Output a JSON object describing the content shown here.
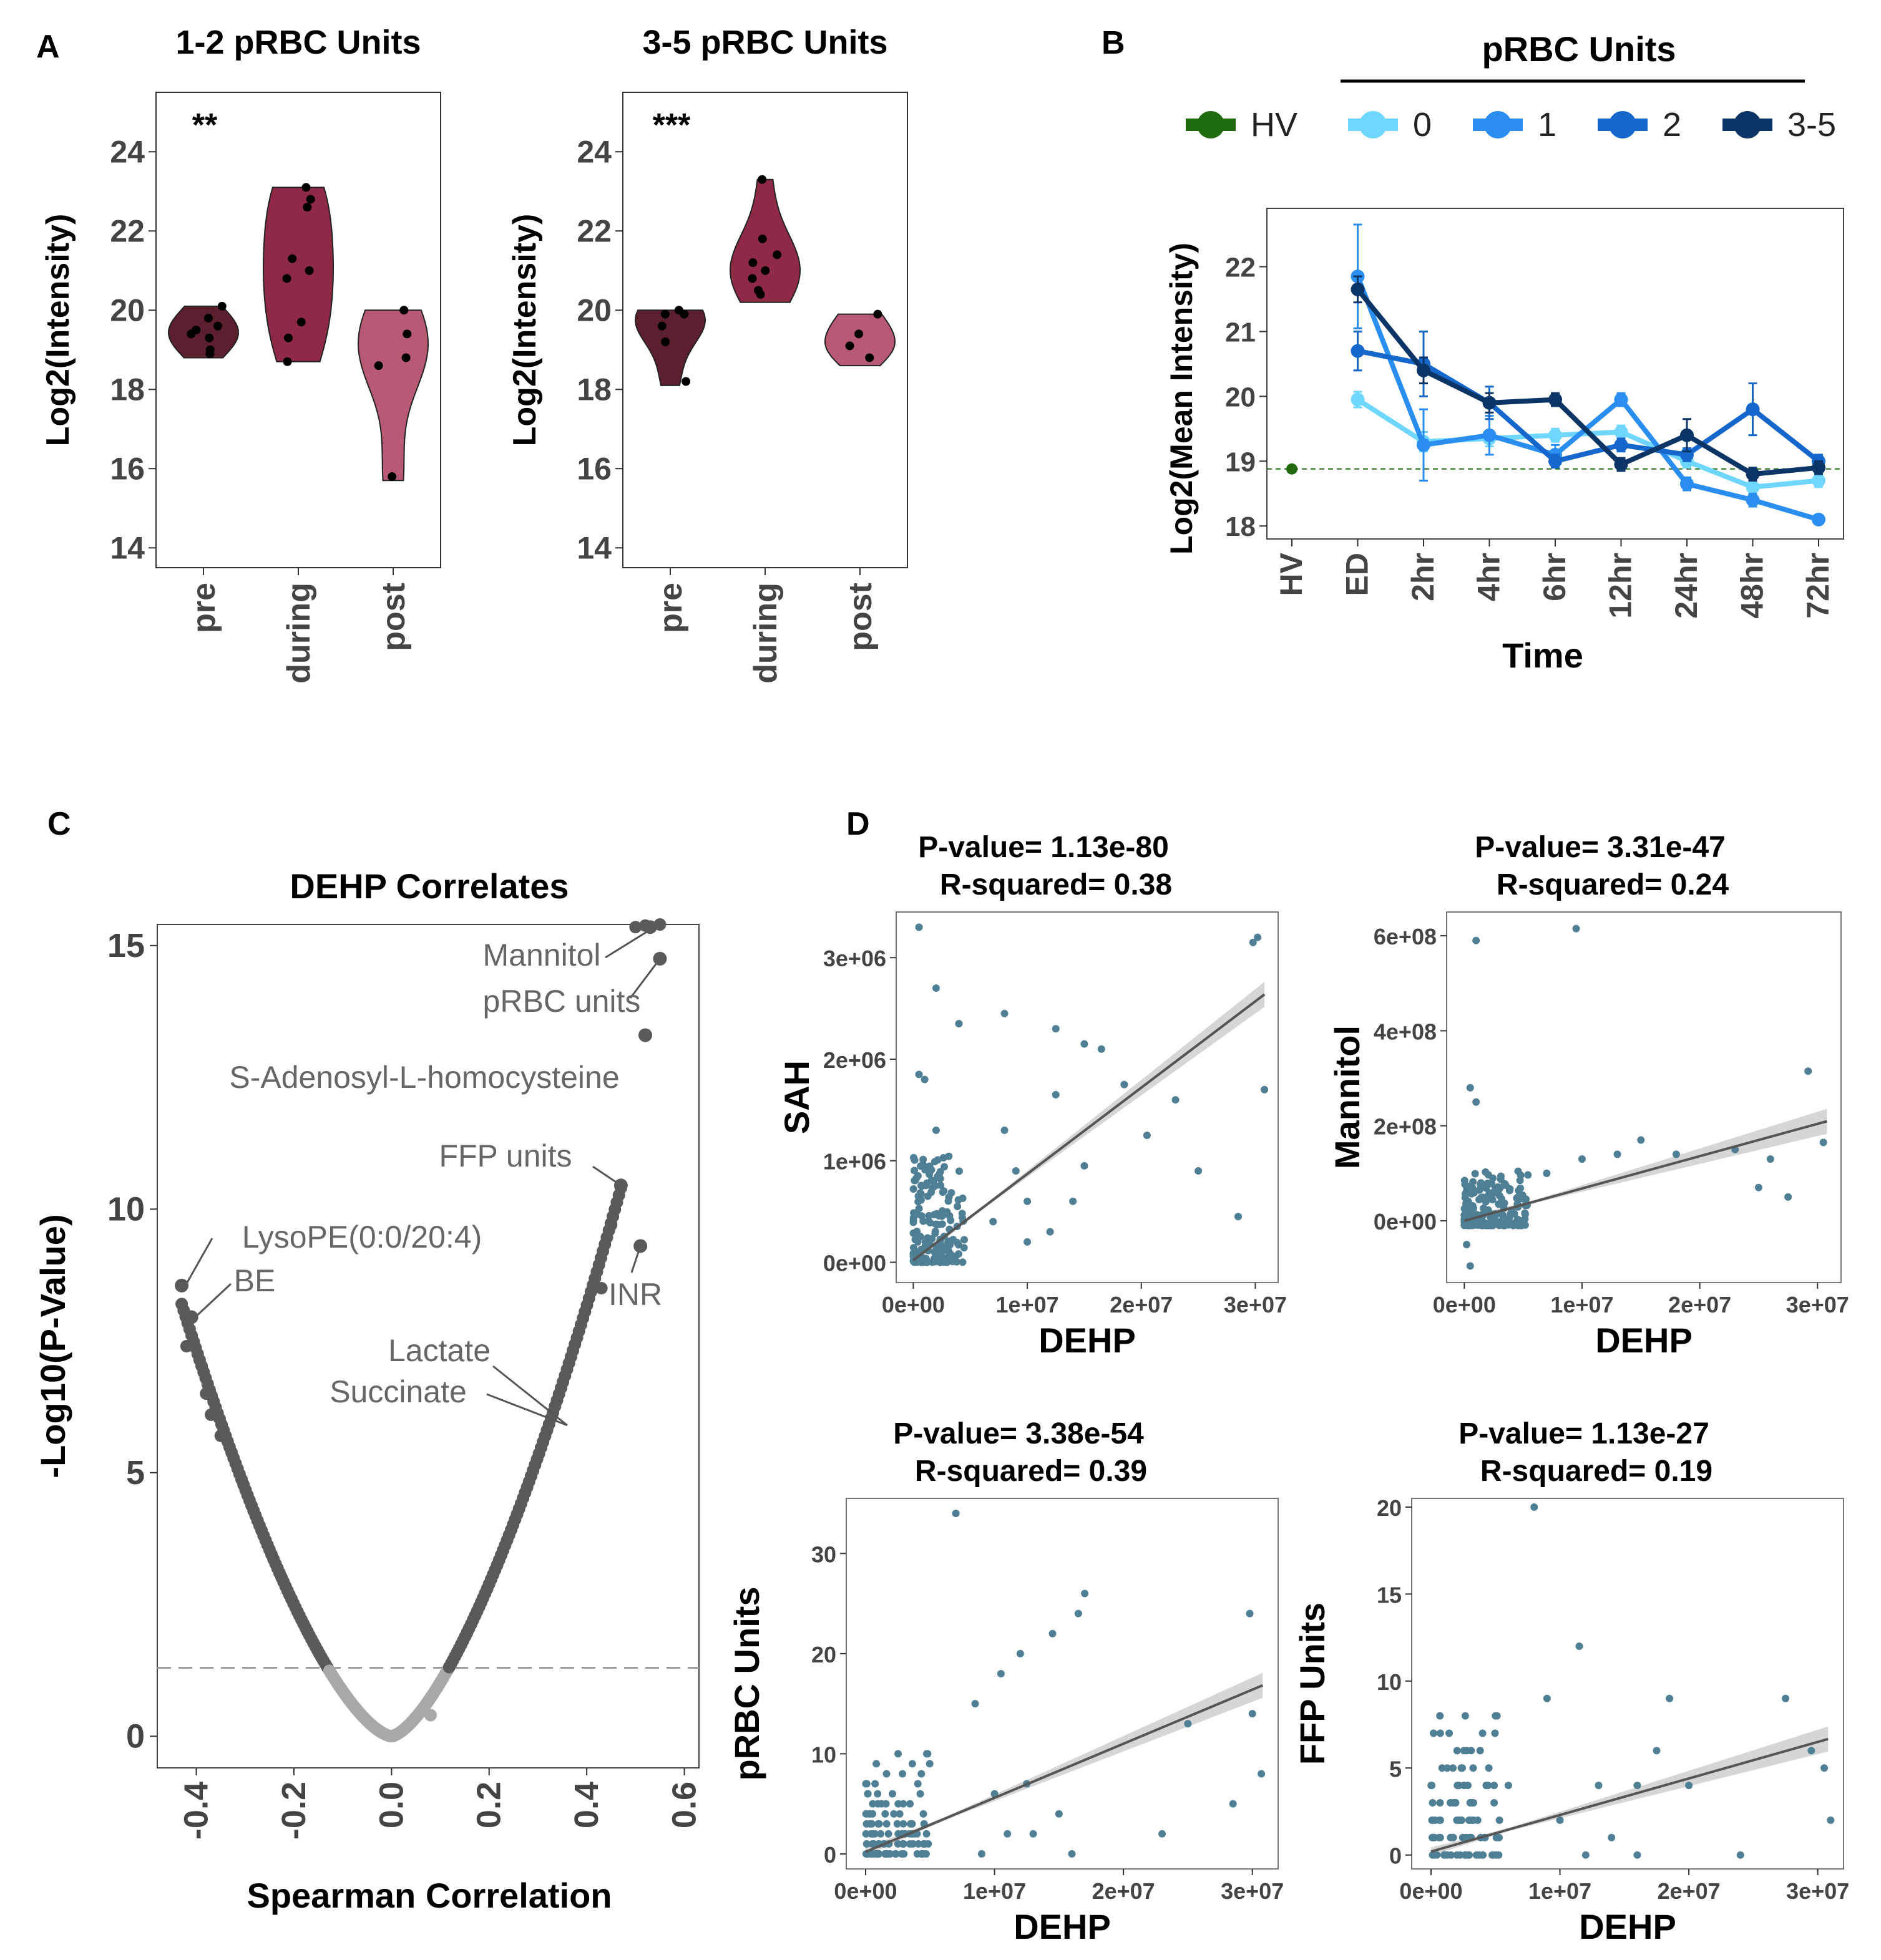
{
  "panel_labels": {
    "a": "A",
    "b": "B",
    "c": "C",
    "d": "D"
  },
  "colors": {
    "violin_pre": "#5c1f2d",
    "violin_during": "#8e2a45",
    "violin_post": "#b85a74",
    "hv": "#1f6b0e",
    "u0": "#6fd6ff",
    "u1": "#2a8df0",
    "u2": "#1667cc",
    "u35": "#0b3566",
    "scatter": "#4f7f94",
    "fit": "#555555",
    "band": "#cfcfcf",
    "volcano_sig": "#5a5a5a",
    "volcano_ns": "#a8a8a8"
  },
  "chart_data": [
    {
      "type": "violin",
      "id": "a1",
      "title": "1-2 pRBC Units",
      "ylabel": "Log2(Intensity)",
      "annotation": "**",
      "ylim": [
        13.5,
        25.5
      ],
      "yticks": [
        "14",
        "16",
        "18",
        "20",
        "22",
        "24"
      ],
      "ytick_values": [
        14,
        16,
        18,
        20,
        22,
        24
      ],
      "categories": [
        "pre",
        "during",
        "post"
      ],
      "groups": [
        {
          "name": "pre",
          "min": 18.8,
          "max": 20.1,
          "points": [
            19.3,
            19.5,
            19.8,
            20.1,
            19.0,
            18.9,
            19.4,
            19.6
          ]
        },
        {
          "name": "during",
          "min": 18.7,
          "max": 23.1,
          "points": [
            23.1,
            22.8,
            22.6,
            21.3,
            21.0,
            20.8,
            19.7,
            19.3,
            18.7
          ]
        },
        {
          "name": "post",
          "min": 15.7,
          "max": 20.0,
          "points": [
            20.0,
            19.4,
            18.8,
            18.6,
            15.8
          ]
        }
      ]
    },
    {
      "type": "violin",
      "id": "a2",
      "title": "3-5 pRBC Units",
      "ylabel": "Log2(Intensity)",
      "annotation": "***",
      "ylim": [
        13.5,
        25.5
      ],
      "yticks": [
        "14",
        "16",
        "18",
        "20",
        "22",
        "24"
      ],
      "ytick_values": [
        14,
        16,
        18,
        20,
        22,
        24
      ],
      "categories": [
        "pre",
        "during",
        "post"
      ],
      "groups": [
        {
          "name": "pre",
          "min": 18.1,
          "max": 20.0,
          "points": [
            20.0,
            19.9,
            19.6,
            19.2,
            18.2,
            19.9
          ]
        },
        {
          "name": "during",
          "min": 20.2,
          "max": 23.3,
          "points": [
            23.3,
            21.8,
            21.4,
            21.2,
            20.8,
            20.5,
            20.4,
            21.0
          ]
        },
        {
          "name": "post",
          "min": 18.6,
          "max": 19.9,
          "points": [
            19.9,
            19.4,
            18.8,
            19.1
          ]
        }
      ]
    },
    {
      "type": "line",
      "id": "b",
      "header": "pRBC Units",
      "xlabel": "Time",
      "ylabel": "Log2(Mean Intensity)",
      "ylim": [
        17.8,
        22.9
      ],
      "yticks": [
        "18",
        "19",
        "20",
        "21",
        "22"
      ],
      "ytick_values": [
        18,
        19,
        20,
        21,
        22
      ],
      "categories": [
        "HV",
        "ED",
        "2hr",
        "4hr",
        "6hr",
        "12hr",
        "24hr",
        "48hr",
        "72hr"
      ],
      "hv_value": 18.88,
      "legend": [
        {
          "label": "HV",
          "key": "hv"
        },
        {
          "label": "0",
          "key": "u0"
        },
        {
          "label": "1",
          "key": "u1"
        },
        {
          "label": "2",
          "key": "u2"
        },
        {
          "label": "3-5",
          "key": "u35"
        }
      ],
      "series": [
        {
          "name": "0",
          "key": "u0",
          "values": [
            null,
            19.95,
            19.3,
            19.35,
            19.4,
            19.45,
            19.0,
            18.6,
            18.7
          ],
          "err": [
            0,
            0.12,
            0.15,
            0.12,
            0.1,
            0.1,
            0.1,
            0.1,
            0.1
          ]
        },
        {
          "name": "1",
          "key": "u1",
          "values": [
            null,
            21.85,
            19.25,
            19.4,
            19.1,
            19.95,
            18.65,
            18.4,
            18.1
          ],
          "err": [
            0,
            0.8,
            0.55,
            0.3,
            0.15,
            0.1,
            0.1,
            0.1,
            0.05
          ]
        },
        {
          "name": "2",
          "key": "u2",
          "values": [
            null,
            20.7,
            20.5,
            19.9,
            19.0,
            19.25,
            19.1,
            19.8,
            19.0
          ],
          "err": [
            0,
            0.3,
            0.5,
            0.25,
            0.1,
            0.1,
            0.1,
            0.4,
            0.1
          ]
        },
        {
          "name": "3-5",
          "key": "u35",
          "values": [
            null,
            21.65,
            20.4,
            19.9,
            19.95,
            18.95,
            19.4,
            18.8,
            18.9
          ],
          "err": [
            0,
            0.2,
            0.2,
            0.15,
            0.1,
            0.1,
            0.25,
            0.1,
            0.1
          ]
        }
      ]
    },
    {
      "type": "scatter",
      "id": "c",
      "title": "DEHP Correlates",
      "xlabel": "Spearman Correlation",
      "ylabel": "-Log10(P-Value)",
      "xlim": [
        -0.48,
        0.63
      ],
      "ylim": [
        -0.6,
        15.4
      ],
      "xticks": [
        "-0.4",
        "-0.2",
        "0.0",
        "0.2",
        "0.4",
        "0.6"
      ],
      "xtick_values": [
        -0.4,
        -0.2,
        0,
        0.2,
        0.4,
        0.6
      ],
      "yticks": [
        "0",
        "5",
        "10",
        "15"
      ],
      "ytick_values": [
        0,
        5,
        10,
        15
      ],
      "threshold": 1.3,
      "labels": [
        {
          "text": "Mannitol",
          "x": 0.53,
          "y": 15.35
        },
        {
          "text": "pRBC units",
          "x": 0.55,
          "y": 14.75
        },
        {
          "text": "S-Adenosyl-L-homocysteine",
          "x": 0.52,
          "y": 13.3
        },
        {
          "text": "FFP units",
          "x": 0.47,
          "y": 10.45
        },
        {
          "text": "INR",
          "x": 0.51,
          "y": 9.3
        },
        {
          "text": "LysoPE(0:0/20:4)",
          "x": -0.43,
          "y": 8.55
        },
        {
          "text": "BE",
          "x": -0.41,
          "y": 7.95
        },
        {
          "text": "Lactate",
          "x": 0.36,
          "y": 5.9
        },
        {
          "text": "Succinate",
          "x": 0.36,
          "y": 5.9
        }
      ],
      "extra_points": [
        [
          0.5,
          15.35
        ],
        [
          0.52,
          15.38
        ],
        [
          0.55,
          15.4
        ],
        [
          0.45,
          9.7
        ],
        [
          0.43,
          8.5
        ],
        [
          -0.42,
          7.4
        ],
        [
          -0.38,
          6.5
        ],
        [
          -0.37,
          6.1
        ],
        [
          -0.35,
          5.7
        ]
      ]
    },
    {
      "type": "scatter",
      "id": "d1",
      "title_line1": "P-value= 1.13e-80",
      "title_line2": "R-squared= 0.38",
      "xlabel": "DEHP",
      "ylabel": "SAH",
      "xlim": [
        -1500000.0,
        32000000.0
      ],
      "ylim": [
        -200000.0,
        3450000.0
      ],
      "xticks": [
        "0e+00",
        "1e+07",
        "2e+07",
        "3e+07"
      ],
      "xtick_values": [
        0,
        10000000.0,
        20000000.0,
        30000000.0
      ],
      "yticks": [
        "0e+00",
        "1e+06",
        "2e+06",
        "3e+06"
      ],
      "ytick_values": [
        0,
        1000000.0,
        2000000.0,
        3000000.0
      ],
      "fit": {
        "intercept": 20000.0,
        "slope": 0.085
      },
      "outliers": [
        [
          500000.0,
          3300000.0
        ],
        [
          29800000.0,
          3150000.0
        ],
        [
          30200000.0,
          3200000.0
        ],
        [
          2000000.0,
          2700000.0
        ],
        [
          8000000.0,
          2450000.0
        ],
        [
          12500000.0,
          2300000.0
        ],
        [
          15000000.0,
          2150000.0
        ],
        [
          16500000.0,
          2100000.0
        ],
        [
          500000.0,
          1850000.0
        ],
        [
          1000000.0,
          1800000.0
        ],
        [
          2000000.0,
          1300000.0
        ],
        [
          8000000.0,
          1300000.0
        ],
        [
          20500000.0,
          1250000.0
        ],
        [
          23000000.0,
          1600000.0
        ],
        [
          25000000.0,
          900000.0
        ],
        [
          30800000.0,
          1700000.0
        ],
        [
          28500000.0,
          450000.0
        ],
        [
          9000000.0,
          900000.0
        ],
        [
          10000000.0,
          600000.0
        ],
        [
          14000000.0,
          600000.0
        ],
        [
          15000000.0,
          950000.0
        ],
        [
          4000000.0,
          2350000.0
        ],
        [
          12500000.0,
          1650000.0
        ],
        [
          18500000.0,
          1750000.0
        ],
        [
          12000000.0,
          300000.0
        ],
        [
          10000000.0,
          200000.0
        ],
        [
          7000000.0,
          400000.0
        ]
      ]
    },
    {
      "type": "scatter",
      "id": "d2",
      "title_line1": "P-value= 3.31e-47",
      "title_line2": "R-squared= 0.24",
      "xlabel": "DEHP",
      "ylabel": "Mannitol",
      "xlim": [
        -1500000.0,
        32000000.0
      ],
      "ylim": [
        -130000000.0,
        650000000.0
      ],
      "xticks": [
        "0e+00",
        "1e+07",
        "2e+07",
        "3e+07"
      ],
      "xtick_values": [
        0,
        10000000.0,
        20000000.0,
        30000000.0
      ],
      "yticks": [
        "0e+00",
        "2e+08",
        "4e+08",
        "6e+08"
      ],
      "ytick_values": [
        0,
        200000000.0,
        400000000.0,
        600000000.0
      ],
      "fit": {
        "intercept": 0.0,
        "slope": 6.8
      },
      "outliers": [
        [
          1000000.0,
          590000000.0
        ],
        [
          9500000.0,
          615000000.0
        ],
        [
          29200000.0,
          315000000.0
        ],
        [
          30500000.0,
          165000000.0
        ],
        [
          500000.0,
          280000000.0
        ],
        [
          1000000.0,
          250000000.0
        ],
        [
          23000000.0,
          150000000.0
        ],
        [
          15000000.0,
          170000000.0
        ],
        [
          10000000.0,
          130000000.0
        ],
        [
          25000000.0,
          70000000.0
        ],
        [
          27500000.0,
          50000000.0
        ],
        [
          13000000.0,
          140000000.0
        ],
        [
          500000.0,
          -95000000.0
        ],
        [
          200000.0,
          -50000000.0
        ],
        [
          7000000.0,
          100000000.0
        ],
        [
          18000000.0,
          140000000.0
        ],
        [
          26000000.0,
          130000000.0
        ]
      ]
    },
    {
      "type": "scatter",
      "id": "d3",
      "title_line1": "P-value= 3.38e-54",
      "title_line2": "R-squared= 0.39",
      "xlabel": "DEHP",
      "ylabel": "pRBC Units",
      "xlim": [
        -1500000.0,
        32000000.0
      ],
      "ylim": [
        -1.5,
        35.5
      ],
      "xticks": [
        "0e+00",
        "1e+07",
        "2e+07",
        "3e+07"
      ],
      "xtick_values": [
        0,
        10000000.0,
        20000000.0,
        30000000.0
      ],
      "yticks": [
        "0",
        "10",
        "20",
        "30"
      ],
      "ytick_values": [
        0,
        10,
        20,
        30
      ],
      "fit": {
        "intercept": 0.2,
        "slope": 5.4e-07
      },
      "outliers": [
        [
          7000000.0,
          34
        ],
        [
          17000000.0,
          26
        ],
        [
          16500000.0,
          24
        ],
        [
          14500000.0,
          22
        ],
        [
          29800000.0,
          24
        ],
        [
          12000000.0,
          20
        ],
        [
          10500000.0,
          18
        ],
        [
          8500000.0,
          15
        ],
        [
          25000000.0,
          13
        ],
        [
          30000000.0,
          14
        ],
        [
          30700000.0,
          8
        ],
        [
          12500000.0,
          7
        ],
        [
          28500000.0,
          5
        ],
        [
          10000000.0,
          6
        ],
        [
          15000000.0,
          4
        ],
        [
          13000000.0,
          2
        ],
        [
          23000000.0,
          2
        ],
        [
          16000000.0,
          0
        ],
        [
          9000000.0,
          0
        ],
        [
          11000000.0,
          2
        ]
      ]
    },
    {
      "type": "scatter",
      "id": "d4",
      "title_line1": "P-value= 1.13e-27",
      "title_line2": "R-squared= 0.19",
      "xlabel": "DEHP",
      "ylabel": "FFP Units",
      "xlim": [
        -1500000.0,
        32000000.0
      ],
      "ylim": [
        -0.8,
        20.5
      ],
      "xticks": [
        "0e+00",
        "1e+07",
        "2e+07",
        "3e+07"
      ],
      "xtick_values": [
        0,
        10000000.0,
        20000000.0,
        30000000.0
      ],
      "yticks": [
        "0",
        "5",
        "10",
        "15",
        "20"
      ],
      "ytick_values": [
        0,
        5,
        10,
        15,
        20
      ],
      "fit": {
        "intercept": 0.2,
        "slope": 2.1e-07
      },
      "outliers": [
        [
          8000000.0,
          20
        ],
        [
          11500000.0,
          12
        ],
        [
          9000000.0,
          9
        ],
        [
          18500000.0,
          9
        ],
        [
          27500000.0,
          9
        ],
        [
          5000000.0,
          8
        ],
        [
          4000000.0,
          7
        ],
        [
          17500000.0,
          6
        ],
        [
          29500000.0,
          6
        ],
        [
          30500000.0,
          5
        ],
        [
          13000000.0,
          4
        ],
        [
          6000000.0,
          4
        ],
        [
          16000000.0,
          4
        ],
        [
          24000000.0,
          0
        ],
        [
          31000000.0,
          2
        ],
        [
          10000000.0,
          2
        ],
        [
          14000000.0,
          1
        ],
        [
          20000000.0,
          4
        ],
        [
          12000000.0,
          0
        ],
        [
          16000000.0,
          0
        ]
      ]
    }
  ]
}
